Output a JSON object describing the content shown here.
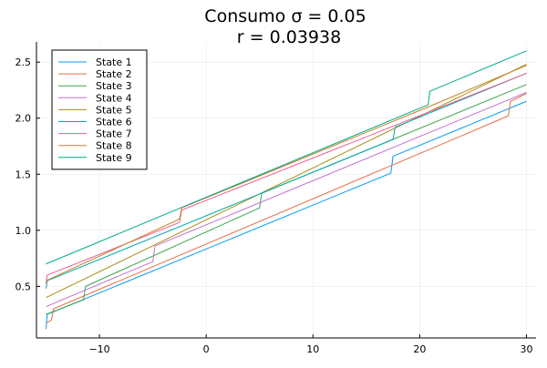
{
  "chart_data": {
    "type": "line",
    "title": "Consumo σ = 0.05",
    "subtitle": "r = 0.03938",
    "xlabel": "",
    "ylabel": "",
    "xlim": [
      -15.9,
      30.9
    ],
    "ylim": [
      0.04,
      2.68
    ],
    "xticks": [
      -10,
      0,
      10,
      20,
      30
    ],
    "yticks": [
      0.5,
      1.0,
      1.5,
      2.0,
      2.5
    ],
    "xtick_labels": [
      "−10",
      "0",
      "10",
      "20",
      "30"
    ],
    "ytick_labels": [
      "0.5",
      "1.0",
      "1.5",
      "2.0",
      "2.5"
    ],
    "grid": true,
    "legend_position": "top-left",
    "series": [
      {
        "name": "State 1",
        "color": "#009AFA",
        "points": [
          [
            -15,
            0.12
          ],
          [
            -14.9,
            0.25
          ],
          [
            17.3,
            1.51
          ],
          [
            17.5,
            1.66
          ],
          [
            30,
            2.15
          ]
        ]
      },
      {
        "name": "State 2",
        "color": "#E36F47",
        "points": [
          [
            -15,
            0.17
          ],
          [
            -14.5,
            0.2
          ],
          [
            -14.3,
            0.3
          ],
          [
            28.3,
            2.02
          ],
          [
            28.5,
            2.15
          ],
          [
            30,
            2.22
          ]
        ]
      },
      {
        "name": "State 3",
        "color": "#3EA44E",
        "points": [
          [
            -15,
            0.25
          ],
          [
            -11.5,
            0.38
          ],
          [
            -11.3,
            0.5
          ],
          [
            5.0,
            1.2
          ],
          [
            5.2,
            1.33
          ],
          [
            30,
            2.3
          ]
        ]
      },
      {
        "name": "State 4",
        "color": "#C371D2",
        "points": [
          [
            -15,
            0.32
          ],
          [
            -5.0,
            0.72
          ],
          [
            -4.8,
            0.86
          ],
          [
            30,
            2.23
          ]
        ]
      },
      {
        "name": "State 5",
        "color": "#AC8D18",
        "points": [
          [
            -15,
            0.4
          ],
          [
            30,
            2.48
          ]
        ]
      },
      {
        "name": "State 6",
        "color": "#00A9AC",
        "points": [
          [
            -15,
            0.48
          ],
          [
            -14.9,
            0.55
          ],
          [
            17.5,
            1.81
          ],
          [
            17.7,
            1.92
          ],
          [
            30,
            2.4
          ]
        ]
      },
      {
        "name": "State 7",
        "color": "#ED5E93",
        "points": [
          [
            -15,
            0.52
          ],
          [
            -14.9,
            0.6
          ],
          [
            -2.5,
            1.07
          ],
          [
            -2.3,
            1.18
          ],
          [
            30,
            2.4
          ]
        ]
      },
      {
        "name": "State 8",
        "color": "#C68225",
        "points": [
          [
            -15,
            0.55
          ],
          [
            -2.5,
            1.1
          ],
          [
            -2.3,
            1.2
          ],
          [
            20.8,
            2.1
          ],
          [
            30,
            2.47
          ]
        ]
      },
      {
        "name": "State 9",
        "color": "#00A98D",
        "points": [
          [
            -15,
            0.7
          ],
          [
            20.8,
            2.12
          ],
          [
            20.95,
            2.24
          ],
          [
            30,
            2.6
          ]
        ]
      }
    ]
  }
}
